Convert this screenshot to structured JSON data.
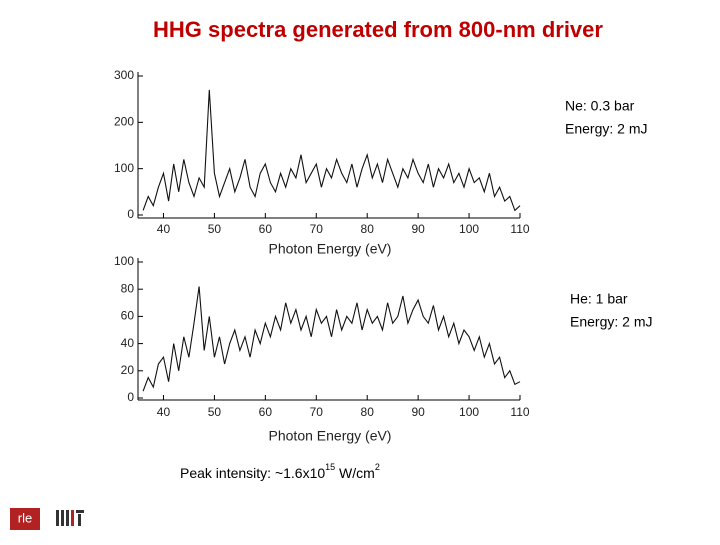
{
  "title": "HHG spectra generated from 800-nm driver",
  "notes": [
    [
      "Ne: 0.3 bar",
      "Energy: 2 mJ"
    ],
    [
      "He: 1 bar",
      "Energy: 2 mJ"
    ]
  ],
  "footnote": {
    "text": "Peak intensity: ~1.6x10",
    "exp1": "15",
    "unit": " W/cm",
    "exp2": "2"
  },
  "logos": [
    "rle"
  ],
  "chart_data": [
    {
      "type": "line",
      "xlabel": "Photon Energy (eV)",
      "color": "#111111",
      "x": [
        36,
        37,
        38,
        39,
        40,
        41,
        42,
        43,
        44,
        45,
        46,
        47,
        48,
        49,
        50,
        51,
        52,
        53,
        54,
        55,
        56,
        57,
        58,
        59,
        60,
        61,
        62,
        63,
        64,
        65,
        66,
        67,
        68,
        69,
        70,
        71,
        72,
        73,
        74,
        75,
        76,
        77,
        78,
        79,
        80,
        81,
        82,
        83,
        84,
        85,
        86,
        87,
        88,
        89,
        90,
        91,
        92,
        93,
        94,
        95,
        96,
        97,
        98,
        99,
        100,
        101,
        102,
        103,
        104,
        105,
        106,
        107,
        108,
        109,
        110
      ],
      "values": [
        10,
        40,
        20,
        60,
        90,
        30,
        110,
        50,
        120,
        70,
        40,
        80,
        60,
        270,
        90,
        40,
        70,
        100,
        50,
        80,
        120,
        60,
        40,
        90,
        110,
        70,
        50,
        90,
        60,
        100,
        80,
        130,
        70,
        90,
        110,
        60,
        100,
        80,
        120,
        90,
        70,
        110,
        60,
        100,
        130,
        80,
        110,
        70,
        120,
        90,
        60,
        100,
        80,
        120,
        90,
        70,
        110,
        60,
        100,
        80,
        110,
        70,
        90,
        60,
        100,
        70,
        80,
        50,
        90,
        40,
        60,
        30,
        40,
        10,
        20
      ],
      "xlim": [
        35,
        110
      ],
      "xticks": [
        40,
        50,
        60,
        70,
        80,
        90,
        100,
        110
      ],
      "ylim": [
        0,
        300
      ],
      "yticks": [
        0,
        100,
        200,
        300
      ]
    },
    {
      "type": "line",
      "xlabel": "Photon Energy (eV)",
      "color": "#111111",
      "x": [
        36,
        37,
        38,
        39,
        40,
        41,
        42,
        43,
        44,
        45,
        46,
        47,
        48,
        49,
        50,
        51,
        52,
        53,
        54,
        55,
        56,
        57,
        58,
        59,
        60,
        61,
        62,
        63,
        64,
        65,
        66,
        67,
        68,
        69,
        70,
        71,
        72,
        73,
        74,
        75,
        76,
        77,
        78,
        79,
        80,
        81,
        82,
        83,
        84,
        85,
        86,
        87,
        88,
        89,
        90,
        91,
        92,
        93,
        94,
        95,
        96,
        97,
        98,
        99,
        100,
        101,
        102,
        103,
        104,
        105,
        106,
        107,
        108,
        109,
        110
      ],
      "values": [
        5,
        15,
        8,
        25,
        30,
        12,
        40,
        20,
        45,
        30,
        55,
        82,
        35,
        60,
        30,
        45,
        25,
        40,
        50,
        35,
        45,
        30,
        50,
        40,
        55,
        45,
        60,
        50,
        70,
        55,
        65,
        50,
        60,
        45,
        65,
        55,
        60,
        45,
        65,
        50,
        60,
        55,
        70,
        50,
        65,
        55,
        60,
        50,
        70,
        55,
        60,
        75,
        55,
        65,
        72,
        60,
        55,
        68,
        50,
        60,
        45,
        55,
        40,
        50,
        45,
        35,
        45,
        30,
        40,
        25,
        30,
        15,
        20,
        10,
        12
      ],
      "xlim": [
        35,
        110
      ],
      "xticks": [
        40,
        50,
        60,
        70,
        80,
        90,
        100,
        110
      ],
      "ylim": [
        0,
        100
      ],
      "yticks": [
        0,
        20,
        40,
        60,
        80,
        100
      ]
    }
  ]
}
